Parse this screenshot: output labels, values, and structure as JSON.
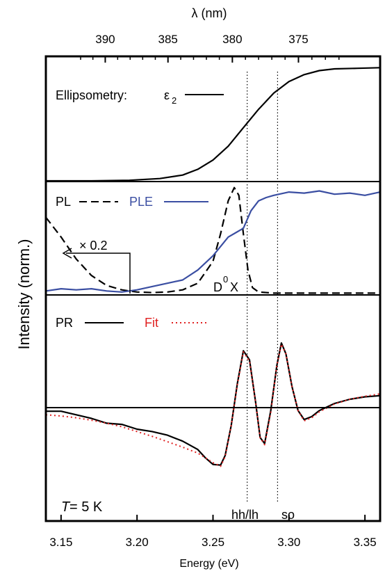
{
  "chart_data": {
    "type": "line",
    "x_axis": {
      "label": "Energy (eV)",
      "range": [
        3.14,
        3.36
      ],
      "ticks": [
        3.15,
        3.2,
        3.25,
        3.3,
        3.35
      ],
      "tick_labels": [
        "3.15",
        "3.20",
        "3.25",
        "3.30",
        "3.35"
      ]
    },
    "top_axis": {
      "label": "λ (nm)",
      "ticks": [
        390,
        385,
        380,
        375
      ],
      "tick_labels": [
        "390",
        "385",
        "380",
        "375"
      ]
    },
    "y_axis": {
      "label": "Intensity (norm.)"
    },
    "markers": [
      3.2725,
      3.2925
    ],
    "panels": [
      {
        "id": "ellipsometry",
        "y_range": [
          0,
          1
        ],
        "legend": {
          "label": "Ellipsometry:",
          "symbol": "ε",
          "subscript": "2"
        },
        "series": [
          {
            "name": "ε2",
            "style": "solid",
            "color": "#000000",
            "x": [
              3.14,
              3.17,
              3.195,
              3.215,
              3.23,
              3.24,
              3.25,
              3.26,
              3.27,
              3.28,
              3.29,
              3.3,
              3.31,
              3.32,
              3.33,
              3.345,
              3.36
            ],
            "y": [
              0.0,
              0.0,
              0.005,
              0.02,
              0.05,
              0.1,
              0.18,
              0.3,
              0.46,
              0.62,
              0.76,
              0.86,
              0.92,
              0.955,
              0.97,
              0.975,
              0.98
            ]
          }
        ]
      },
      {
        "id": "photoluminescence",
        "y_range": [
          0,
          1
        ],
        "legend": [
          {
            "label": "PL",
            "style": "dashed",
            "color": "#000000"
          },
          {
            "label": "PLE",
            "style": "solid",
            "color": "#3a4ea2"
          }
        ],
        "annotations": [
          {
            "text": "× 0.2"
          },
          {
            "text": "D",
            "superscript": "0",
            "tail": "X"
          }
        ],
        "series": [
          {
            "name": "PL",
            "style": "dashed",
            "color": "#000000",
            "x": [
              3.14,
              3.15,
              3.16,
              3.17,
              3.18,
              3.19,
              3.2,
              3.21,
              3.22,
              3.23,
              3.24,
              3.25,
              3.255,
              3.26,
              3.264,
              3.267,
              3.27,
              3.273,
              3.276,
              3.28,
              3.29,
              3.3,
              3.36
            ],
            "y": [
              0.7,
              0.52,
              0.32,
              0.17,
              0.08,
              0.04,
              0.02,
              0.015,
              0.02,
              0.04,
              0.1,
              0.3,
              0.55,
              0.85,
              0.97,
              0.9,
              0.55,
              0.22,
              0.06,
              0.02,
              0.01,
              0.01,
              0.01
            ]
          },
          {
            "name": "PLE",
            "style": "solid",
            "color": "#3a4ea2",
            "x": [
              3.14,
              3.15,
              3.16,
              3.17,
              3.18,
              3.19,
              3.2,
              3.21,
              3.22,
              3.23,
              3.24,
              3.25,
              3.26,
              3.265,
              3.27,
              3.275,
              3.28,
              3.285,
              3.29,
              3.3,
              3.31,
              3.32,
              3.33,
              3.34,
              3.35,
              3.36
            ],
            "y": [
              0.03,
              0.05,
              0.04,
              0.05,
              0.03,
              0.02,
              0.04,
              0.07,
              0.1,
              0.13,
              0.22,
              0.35,
              0.52,
              0.56,
              0.6,
              0.76,
              0.85,
              0.88,
              0.9,
              0.93,
              0.92,
              0.94,
              0.91,
              0.92,
              0.9,
              0.93
            ]
          }
        ]
      },
      {
        "id": "photoreflectance",
        "y_range": [
          -1,
          1
        ],
        "legend": [
          {
            "label": "PR",
            "style": "solid",
            "color": "#000000"
          },
          {
            "label": "Fit",
            "style": "dotted",
            "color": "#e02020"
          }
        ],
        "annotations": [
          {
            "text": "hh/lh"
          },
          {
            "text": "so"
          },
          {
            "text": "T",
            "tail": " = 5 K"
          }
        ],
        "series": [
          {
            "name": "PR",
            "style": "solid",
            "color": "#000000",
            "x": [
              3.14,
              3.15,
              3.16,
              3.17,
              3.18,
              3.19,
              3.2,
              3.21,
              3.22,
              3.23,
              3.24,
              3.245,
              3.25,
              3.255,
              3.258,
              3.262,
              3.266,
              3.27,
              3.274,
              3.278,
              3.281,
              3.284,
              3.288,
              3.292,
              3.295,
              3.298,
              3.302,
              3.306,
              3.31,
              3.315,
              3.32,
              3.33,
              3.34,
              3.35,
              3.36
            ],
            "y": [
              -0.06,
              -0.06,
              -0.12,
              -0.18,
              -0.26,
              -0.28,
              -0.36,
              -0.4,
              -0.46,
              -0.56,
              -0.7,
              -0.84,
              -0.95,
              -0.96,
              -0.8,
              -0.3,
              0.4,
              0.95,
              0.8,
              0.1,
              -0.5,
              -0.6,
              -0.05,
              0.7,
              1.08,
              0.9,
              0.35,
              -0.05,
              -0.2,
              -0.15,
              -0.05,
              0.07,
              0.14,
              0.18,
              0.2
            ]
          },
          {
            "name": "Fit",
            "style": "dotted",
            "color": "#e02020",
            "x": [
              3.14,
              3.15,
              3.16,
              3.17,
              3.18,
              3.19,
              3.2,
              3.21,
              3.22,
              3.23,
              3.24,
              3.245,
              3.25,
              3.255,
              3.258,
              3.262,
              3.266,
              3.27,
              3.274,
              3.278,
              3.281,
              3.284,
              3.288,
              3.292,
              3.295,
              3.298,
              3.302,
              3.306,
              3.31,
              3.315,
              3.32,
              3.33,
              3.34,
              3.35,
              3.36
            ],
            "y": [
              -0.12,
              -0.14,
              -0.17,
              -0.21,
              -0.26,
              -0.32,
              -0.4,
              -0.48,
              -0.57,
              -0.66,
              -0.76,
              -0.84,
              -0.92,
              -0.98,
              -0.82,
              -0.3,
              0.38,
              0.93,
              0.78,
              0.1,
              -0.5,
              -0.62,
              -0.08,
              0.7,
              1.06,
              0.9,
              0.35,
              -0.05,
              -0.22,
              -0.17,
              -0.07,
              0.06,
              0.14,
              0.19,
              0.23
            ]
          }
        ]
      }
    ]
  }
}
